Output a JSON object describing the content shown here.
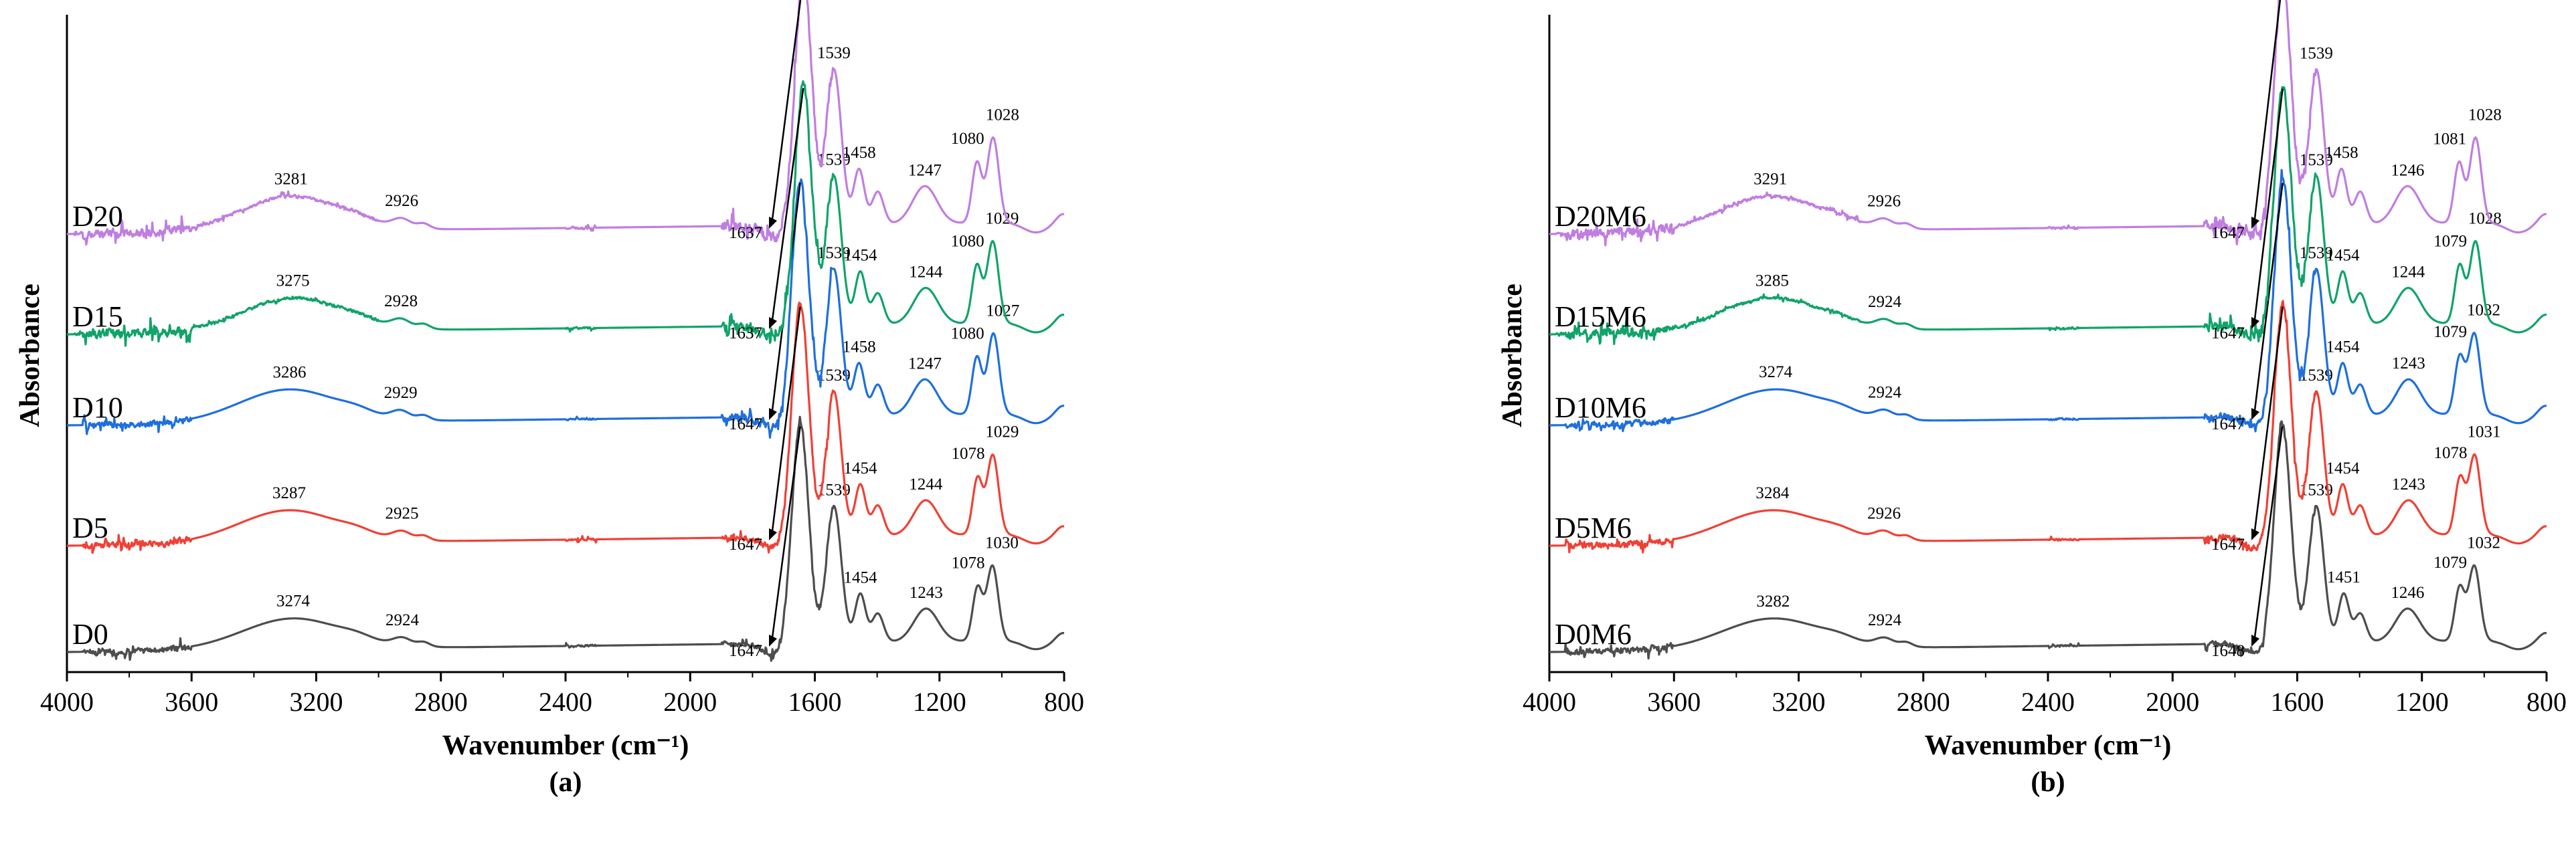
{
  "figure": {
    "panels": [
      {
        "id": "a",
        "label": "(a)"
      },
      {
        "id": "b",
        "label": "(b)"
      }
    ]
  },
  "chart_data": [
    {
      "type": "line",
      "panel_label": "(a)",
      "xlabel": "Wavenumber (cm⁻¹)",
      "ylabel": "Absorbance",
      "xlim": [
        4000,
        800
      ],
      "x_reversed": true,
      "xticks": [
        4000,
        3600,
        3200,
        2800,
        2400,
        2000,
        1600,
        1200,
        800
      ],
      "legend": "none",
      "series": [
        {
          "name": "D0",
          "color": "#4d4d4d",
          "offset": 0,
          "nh_peak": 3274,
          "ch_peak": 2924,
          "amide_I": 1647,
          "amide_II": 1539,
          "band_1454": 1454,
          "band_1243": 1243,
          "band_1078": 1078,
          "band_1030": 1030,
          "peak_labels": [
            "3274",
            "2924",
            "1647",
            "1539",
            "1454",
            "1243",
            "1078",
            "1030"
          ]
        },
        {
          "name": "D5",
          "color": "#ef4136",
          "offset": 1,
          "nh_peak": 3287,
          "ch_peak": 2925,
          "amide_I": 1647,
          "amide_II": 1539,
          "band_1454": 1454,
          "band_1243": 1244,
          "band_1078": 1078,
          "band_1030": 1029,
          "peak_labels": [
            "3287",
            "2925",
            "1647",
            "1539",
            "1454",
            "1244",
            "1078",
            "1029"
          ]
        },
        {
          "name": "D10",
          "color": "#1f6fdc",
          "offset": 2,
          "nh_peak": 3286,
          "ch_peak": 2929,
          "amide_I": 1647,
          "amide_II": 1539,
          "band_1454": 1458,
          "band_1243": 1247,
          "band_1078": 1080,
          "band_1030": 1027,
          "peak_labels": [
            "3286",
            "2929",
            "1647",
            "1539",
            "1458",
            "1247",
            "1080",
            "1027"
          ]
        },
        {
          "name": "D15",
          "color": "#11a36a",
          "offset": 3,
          "nh_peak": 3275,
          "ch_peak": 2928,
          "amide_I": 1637,
          "amide_II": 1539,
          "band_1454": 1454,
          "band_1243": 1244,
          "band_1078": 1080,
          "band_1030": 1029,
          "peak_labels": [
            "3275",
            "2928",
            "1637",
            "1539",
            "1454",
            "1244",
            "1080",
            "1029"
          ]
        },
        {
          "name": "D20",
          "color": "#c07ee0",
          "offset": 4,
          "nh_peak": 3281,
          "ch_peak": 2926,
          "amide_I": 1637,
          "amide_II": 1539,
          "band_1454": 1458,
          "band_1243": 1247,
          "band_1078": 1080,
          "band_1030": 1028,
          "peak_labels": [
            "3281",
            "2926",
            "1637",
            "1539",
            "1458",
            "1247",
            "1080",
            "1028"
          ]
        }
      ]
    },
    {
      "type": "line",
      "panel_label": "(b)",
      "xlabel": "Wavenumber (cm⁻¹)",
      "ylabel": "Absorbance",
      "xlim": [
        4000,
        800
      ],
      "x_reversed": true,
      "xticks": [
        4000,
        3600,
        3200,
        2800,
        2400,
        2000,
        1600,
        1200,
        800
      ],
      "legend": "none",
      "series": [
        {
          "name": "D0M6",
          "color": "#4d4d4d",
          "offset": 0,
          "nh_peak": 3282,
          "ch_peak": 2924,
          "amide_I": 1648,
          "amide_II": 1539,
          "band_1454": 1451,
          "band_1243": 1246,
          "band_1078": 1079,
          "band_1030": 1032,
          "peak_labels": [
            "3282",
            "2924",
            "1648",
            "1539",
            "1451",
            "1246",
            "1079",
            "1032"
          ]
        },
        {
          "name": "D5M6",
          "color": "#ef4136",
          "offset": 1,
          "nh_peak": 3284,
          "ch_peak": 2926,
          "amide_I": 1647,
          "amide_II": 1539,
          "band_1454": 1454,
          "band_1243": 1243,
          "band_1078": 1078,
          "band_1030": 1031,
          "peak_labels": [
            "3284",
            "2926",
            "1647",
            "1539",
            "1454",
            "1243",
            "1078",
            "1031"
          ]
        },
        {
          "name": "D10M6",
          "color": "#1f6fdc",
          "offset": 2,
          "nh_peak": 3274,
          "ch_peak": 2924,
          "amide_I": 1647,
          "amide_II": 1539,
          "band_1454": 1454,
          "band_1243": 1243,
          "band_1078": 1079,
          "band_1030": 1032,
          "peak_labels": [
            "3274",
            "2924",
            "1647",
            "1539",
            "1454",
            "1243",
            "1079",
            "1032"
          ]
        },
        {
          "name": "D15M6",
          "color": "#11a36a",
          "offset": 3,
          "nh_peak": 3285,
          "ch_peak": 2924,
          "amide_I": 1647,
          "amide_II": 1539,
          "band_1454": 1454,
          "band_1243": 1244,
          "band_1078": 1079,
          "band_1030": 1028,
          "peak_labels": [
            "3285",
            "2924",
            "1647",
            "1539",
            "1454",
            "1244",
            "1079",
            "1028"
          ]
        },
        {
          "name": "D20M6",
          "color": "#c07ee0",
          "offset": 4,
          "nh_peak": 3291,
          "ch_peak": 2926,
          "amide_I": 1647,
          "amide_II": 1539,
          "band_1454": 1458,
          "band_1243": 1246,
          "band_1078": 1081,
          "band_1030": 1028,
          "peak_labels": [
            "3291",
            "2926",
            "1647",
            "1539",
            "1458",
            "1246",
            "1081",
            "1028"
          ]
        }
      ]
    }
  ]
}
